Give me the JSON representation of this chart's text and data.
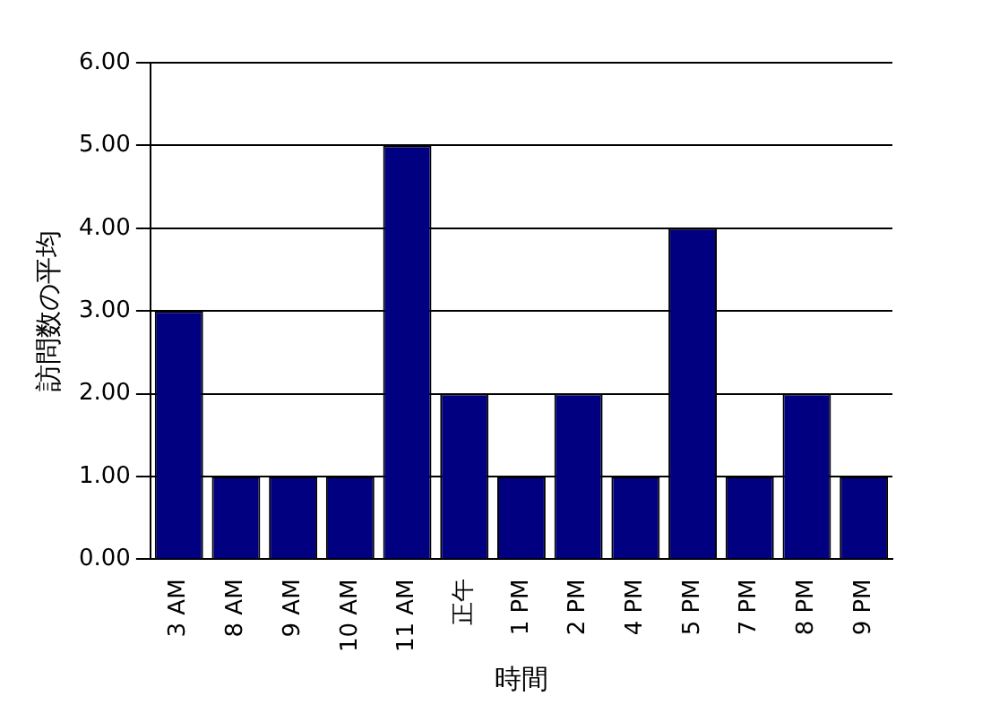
{
  "chart_data": {
    "type": "bar",
    "xlabel": "時間",
    "ylabel": "訪問数の平均",
    "categories": [
      "3 AM",
      "8 AM",
      "9 AM",
      "10 AM",
      "11 AM",
      "正午",
      "1 PM",
      "2 PM",
      "4 PM",
      "5 PM",
      "7 PM",
      "8 PM",
      "9 PM"
    ],
    "values": [
      3,
      1,
      1,
      1,
      5,
      2,
      1,
      2,
      1,
      4,
      1,
      2,
      1
    ],
    "color": "#000080",
    "ylim": [
      0,
      6
    ],
    "yticks": [
      {
        "value": 0,
        "label": "0.00"
      },
      {
        "value": 1,
        "label": "1.00"
      },
      {
        "value": 2,
        "label": "2.00"
      },
      {
        "value": 3,
        "label": "3.00"
      },
      {
        "value": 4,
        "label": "4.00"
      },
      {
        "value": 5,
        "label": "5.00"
      },
      {
        "value": 6,
        "label": "6.00"
      }
    ],
    "grid": "y",
    "legend": false
  }
}
